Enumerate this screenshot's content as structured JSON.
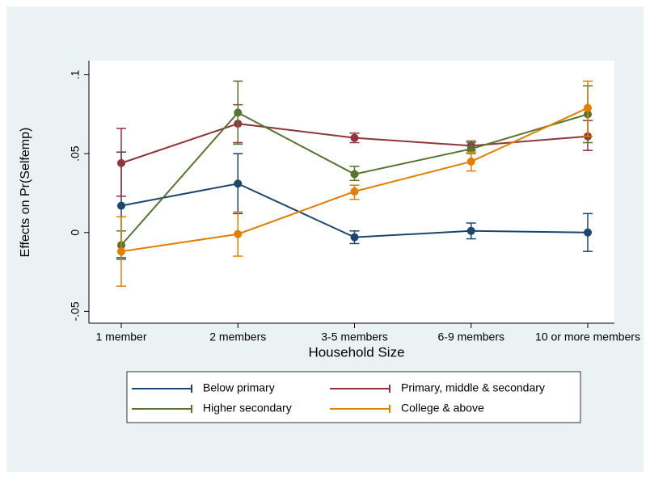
{
  "chart_data": {
    "type": "line",
    "x_label": "Household Size",
    "y_label": "Effects on Pr(Selfemp)",
    "categories": [
      "1 member",
      "2 members",
      "3-5 members",
      "6-9 members",
      "10 or more members"
    ],
    "ylim": [
      -0.0575,
      0.109
    ],
    "yticks": [
      {
        "value": -0.05,
        "label": "-.05"
      },
      0,
      {
        "value": 0.05,
        "label": ".05"
      },
      {
        "value": 0.1,
        "label": ".1"
      }
    ],
    "series": [
      {
        "name": "Below primary",
        "color": "#1a476f",
        "values": [
          0.017,
          0.031,
          -0.003,
          0.001,
          0.0
        ],
        "lower": [
          -0.016,
          0.012,
          -0.007,
          -0.004,
          -0.012
        ],
        "upper": [
          0.051,
          0.05,
          0.001,
          0.006,
          0.012
        ]
      },
      {
        "name": "Primary, middle & secondary",
        "color": "#90353b",
        "values": [
          0.044,
          0.069,
          0.06,
          0.055,
          0.061
        ],
        "lower": [
          0.023,
          0.057,
          0.057,
          0.052,
          0.052
        ],
        "upper": [
          0.066,
          0.081,
          0.063,
          0.058,
          0.071
        ]
      },
      {
        "name": "Higher secondary",
        "color": "#55752f",
        "values": [
          -0.008,
          0.076,
          0.037,
          0.053,
          0.075
        ],
        "lower": [
          -0.017,
          0.056,
          0.033,
          0.05,
          0.057
        ],
        "upper": [
          0.001,
          0.096,
          0.042,
          0.057,
          0.093
        ]
      },
      {
        "name": "College & above",
        "color": "#e37e00",
        "values": [
          -0.012,
          -0.001,
          0.026,
          0.045,
          0.079
        ],
        "lower": [
          -0.034,
          -0.015,
          0.021,
          0.039,
          0.061
        ],
        "upper": [
          0.01,
          0.013,
          0.03,
          0.051,
          0.096
        ]
      }
    ]
  }
}
